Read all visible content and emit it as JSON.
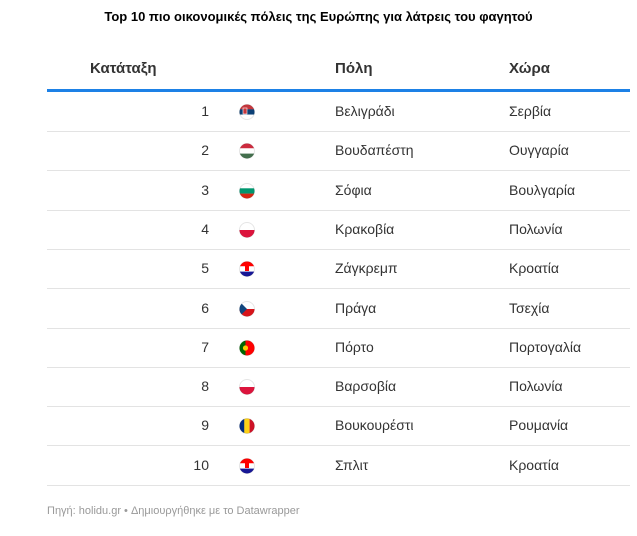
{
  "title": "Top 10 πιο οικονομικές πόλεις της Ευρώπης για λάτρεις του φαγητού",
  "table": {
    "header": [
      "Κατάταξη",
      "Πόλη",
      "Χώρα"
    ],
    "rows": [
      [
        1,
        "Βελιγράδι",
        "Σερβία"
      ],
      [
        2,
        "Βουδαπέστη",
        "Ουγγαρία"
      ],
      [
        3,
        "Σόφια",
        "Βουλγαρία"
      ],
      [
        4,
        "Κρακοβία",
        "Πολωνία"
      ],
      [
        5,
        "Ζάγκρεμπ",
        "Κροατία"
      ],
      [
        6,
        "Πράγα",
        "Τσεχία"
      ],
      [
        7,
        "Πόρτο",
        "Πορτογαλία"
      ],
      [
        8,
        "Βαρσοβία",
        "Πολωνία"
      ],
      [
        9,
        "Βουκουρέστι",
        "Ρουμανία"
      ],
      [
        10,
        "Σπλιτ",
        "Κροατία"
      ]
    ]
  },
  "footer": "Πηγή: holidu.gr • Δημιουργήθηκε με το Datawrapper"
}
